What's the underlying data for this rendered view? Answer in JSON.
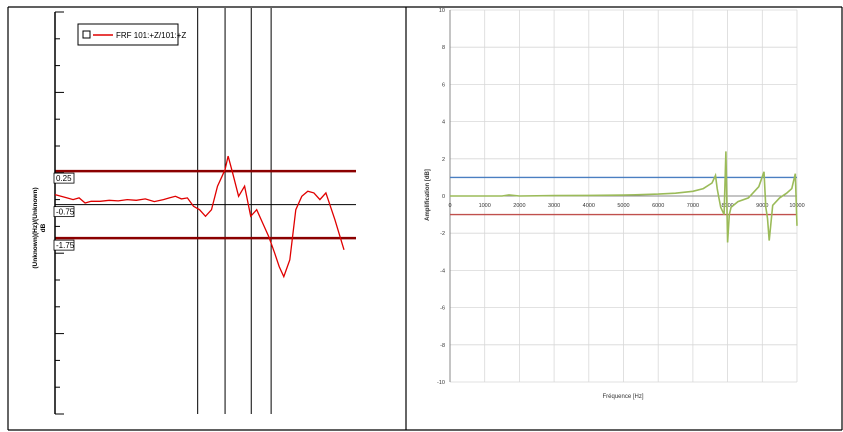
{
  "chart_data": [
    {
      "type": "line",
      "legend": {
        "label": "FRF 101:+Z/101:+Z",
        "placement": "top-left"
      },
      "ylabel_lines": [
        "(Unknown)(Hz)/(Unknown)",
        "dB"
      ],
      "band_labels": [
        "0.25",
        "-0.75",
        "-1.75"
      ],
      "ylim": [
        -7.0,
        5.0
      ],
      "reference_lines": [
        {
          "y": 0.25,
          "color": "#8b0000"
        },
        {
          "y": -0.75,
          "color": "#000000"
        },
        {
          "y": -1.75,
          "color": "#8b0000"
        }
      ],
      "x_markers_rel": [
        0.474,
        0.565,
        0.652,
        0.718
      ],
      "series": [
        {
          "color": "#e00000",
          "x_rel": [
            0.0,
            0.02,
            0.04,
            0.06,
            0.08,
            0.1,
            0.12,
            0.15,
            0.18,
            0.21,
            0.24,
            0.27,
            0.3,
            0.33,
            0.36,
            0.38,
            0.4,
            0.42,
            0.44,
            0.46,
            0.48,
            0.5,
            0.52,
            0.54,
            0.555,
            0.565,
            0.575,
            0.59,
            0.61,
            0.63,
            0.65,
            0.67,
            0.69,
            0.71,
            0.73,
            0.745,
            0.76,
            0.78,
            0.8,
            0.82,
            0.84,
            0.86,
            0.88,
            0.9,
            0.93,
            0.96
          ],
          "y": [
            -0.45,
            -0.5,
            -0.55,
            -0.6,
            -0.55,
            -0.7,
            -0.65,
            -0.65,
            -0.62,
            -0.64,
            -0.6,
            -0.62,
            -0.58,
            -0.66,
            -0.6,
            -0.55,
            -0.5,
            -0.58,
            -0.55,
            -0.8,
            -0.9,
            -1.1,
            -0.9,
            -0.2,
            0.1,
            0.3,
            0.7,
            0.2,
            -0.5,
            -0.2,
            -1.1,
            -0.9,
            -1.3,
            -1.7,
            -2.2,
            -2.6,
            -2.9,
            -2.4,
            -0.9,
            -0.5,
            -0.35,
            -0.4,
            -0.6,
            -0.4,
            -1.2,
            -2.1
          ]
        }
      ]
    },
    {
      "type": "line",
      "xlabel": "Fréquence [Hz]",
      "ylabel": "Amplification [dB]",
      "xlim": [
        0,
        10000
      ],
      "ylim": [
        -10,
        10
      ],
      "x_ticks": [
        0,
        1000,
        2000,
        3000,
        4000,
        5000,
        6000,
        7000,
        8000,
        9000,
        10000
      ],
      "y_ticks": [
        -10,
        -8,
        -6,
        -4,
        -2,
        0,
        2,
        4,
        6,
        8,
        10
      ],
      "grid": true,
      "series": [
        {
          "color": "#4a7fc1",
          "x": [
            0,
            10000
          ],
          "y": [
            1,
            1
          ]
        },
        {
          "color": "#c0504d",
          "x": [
            0,
            10000
          ],
          "y": [
            -1,
            -1
          ]
        },
        {
          "color": "#9bbb59",
          "x": [
            0,
            500,
            1000,
            1500,
            1700,
            2000,
            3000,
            4000,
            5000,
            6000,
            6500,
            7000,
            7300,
            7550,
            7650,
            7700,
            7750,
            7800,
            7900,
            7950,
            8000,
            8050,
            8100,
            8300,
            8600,
            8900,
            9050,
            9100,
            9150,
            9200,
            9300,
            9500,
            9700,
            9850,
            9950,
            10000
          ],
          "y": [
            0,
            0,
            0,
            0,
            0.06,
            0,
            0.02,
            0.03,
            0.05,
            0.1,
            0.15,
            0.25,
            0.4,
            0.7,
            1.1,
            0.4,
            -0.1,
            -0.6,
            -1.0,
            2.4,
            -2.5,
            -1.0,
            -0.6,
            -0.3,
            -0.1,
            0.5,
            1.3,
            -0.6,
            -1.2,
            -2.4,
            -0.5,
            -0.1,
            0.15,
            0.4,
            1.2,
            -1.6
          ]
        }
      ]
    }
  ]
}
